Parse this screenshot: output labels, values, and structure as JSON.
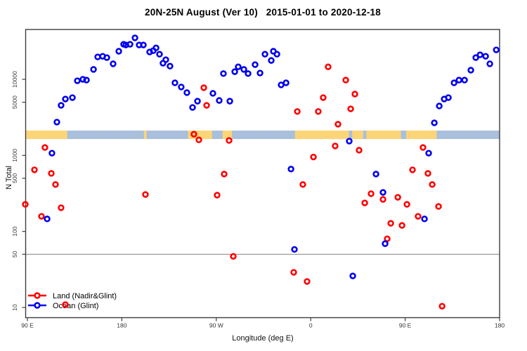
{
  "chart_data": {
    "type": "scatter",
    "title": "20N-25N August (Ver 10)   2015-01-01 to 2020-12-18",
    "xlabel": "Longitude (deg E)",
    "ylabel": "N Total",
    "x_axis": {
      "ticks": [
        90,
        180,
        270,
        360,
        450,
        540
      ],
      "tick_labels": [
        "90 E",
        "180",
        "90 W",
        "0",
        "90 E",
        "180"
      ],
      "note": "longitude wraps: 90E to 180, 90W, 0, 90E, 180"
    },
    "y_axis": {
      "scale": "log",
      "ticks": [
        10,
        50,
        100,
        500,
        1000,
        5000,
        10000
      ],
      "tick_labels": [
        "10",
        "50",
        "100",
        "500",
        "1000",
        "5000",
        "10000"
      ],
      "range": [
        9,
        45000
      ]
    },
    "reference_line_y": 50,
    "map_strip": {
      "n_top": 2120,
      "n_bottom": 1640,
      "ocean_color": "#a9bfdc",
      "land_color": "#fbd578",
      "land_segments_lon": [
        [
          88,
          128
        ],
        [
          201,
          203.5
        ],
        [
          243,
          266
        ],
        [
          276,
          285
        ],
        [
          345,
          480
        ]
      ],
      "ocean_gaps_lon": [
        [
          396.5,
          399.5
        ],
        [
          410,
          413
        ],
        [
          446,
          451
        ]
      ]
    },
    "legend": [
      {
        "label": "Land (Nadir&Glint)",
        "color": "#ff0000"
      },
      {
        "label": "Ocean (Glint)",
        "color": "#0000ee"
      }
    ],
    "series": [
      {
        "name": "Land (Nadir&Glint)",
        "color": "#ff0000",
        "points": [
          [
            258.1,
            7760
          ],
          [
            260.8,
            4550
          ],
          [
            376.6,
            14600
          ],
          [
            393.4,
            9770
          ],
          [
            371.9,
            5750
          ],
          [
            367.2,
            3780
          ],
          [
            347.2,
            3780
          ],
          [
            386.0,
            2570
          ],
          [
            402.1,
            6400
          ],
          [
            398.1,
            4090
          ],
          [
            106.7,
            1270
          ],
          [
            96.7,
            646
          ],
          [
            112.8,
            580
          ],
          [
            116.8,
            414
          ],
          [
            88.0,
            227
          ],
          [
            122.1,
            205
          ],
          [
            103.4,
            158
          ],
          [
            202.5,
            306
          ],
          [
            248.7,
            1900
          ],
          [
            253.4,
            1600
          ],
          [
            282.2,
            1570
          ],
          [
            277.5,
            568
          ],
          [
            270.8,
            300
          ],
          [
            286.2,
            47
          ],
          [
            126.2,
            10.9
          ],
          [
            383.3,
            1330
          ],
          [
            406.1,
            1170
          ],
          [
            362.6,
            952
          ],
          [
            352.5,
            414
          ],
          [
            467.0,
            1270
          ],
          [
            457.0,
            646
          ],
          [
            471.7,
            580
          ],
          [
            475.8,
            414
          ],
          [
            417.5,
            313
          ],
          [
            428.9,
            264
          ],
          [
            443.0,
            281
          ],
          [
            451.7,
            227
          ],
          [
            411.5,
            237
          ],
          [
            481.8,
            213
          ],
          [
            462.3,
            158
          ],
          [
            436.3,
            128
          ],
          [
            447.0,
            120
          ],
          [
            432.9,
            80
          ],
          [
            343.8,
            29
          ],
          [
            356.5,
            22
          ],
          [
            485.2,
            10.4
          ]
        ]
      },
      {
        "name": "Ocean (Glint)",
        "color": "#0000ee",
        "points": [
          [
            118.1,
            2740
          ],
          [
            122.1,
            4550
          ],
          [
            126.2,
            5510
          ],
          [
            132.9,
            5750
          ],
          [
            137.6,
            9580
          ],
          [
            142.9,
            10000
          ],
          [
            146.3,
            9770
          ],
          [
            153.0,
            13500
          ],
          [
            157.0,
            19700
          ],
          [
            161.7,
            20100
          ],
          [
            165.7,
            19300
          ],
          [
            171.7,
            16000
          ],
          [
            177.1,
            23400
          ],
          [
            181.7,
            28900
          ],
          [
            183.8,
            28300
          ],
          [
            187.8,
            28900
          ],
          [
            192.5,
            35100
          ],
          [
            196.5,
            28300
          ],
          [
            200.5,
            28300
          ],
          [
            206.5,
            22900
          ],
          [
            209.9,
            23800
          ],
          [
            212.6,
            25900
          ],
          [
            215.9,
            21400
          ],
          [
            219.2,
            16300
          ],
          [
            221.9,
            18100
          ],
          [
            225.9,
            14900
          ],
          [
            230.6,
            9000
          ],
          [
            236.6,
            7930
          ],
          [
            242.0,
            6680
          ],
          [
            247.4,
            4270
          ],
          [
            252.1,
            5160
          ],
          [
            266.8,
            6540
          ],
          [
            272.8,
            5270
          ],
          [
            282.9,
            5160
          ],
          [
            276.8,
            11900
          ],
          [
            287.6,
            12600
          ],
          [
            290.9,
            14600
          ],
          [
            296.3,
            13500
          ],
          [
            300.3,
            11900
          ],
          [
            307.0,
            15600
          ],
          [
            311.7,
            12100
          ],
          [
            316.4,
            21400
          ],
          [
            322.4,
            17700
          ],
          [
            324.4,
            23400
          ],
          [
            327.8,
            21400
          ],
          [
            331.8,
            8450
          ],
          [
            336.5,
            9000
          ],
          [
            477.8,
            2680
          ],
          [
            482.5,
            4460
          ],
          [
            487.2,
            5510
          ],
          [
            491.2,
            5750
          ],
          [
            496.6,
            9000
          ],
          [
            501.3,
            9770
          ],
          [
            506.6,
            9770
          ],
          [
            512.6,
            13200
          ],
          [
            517.3,
            19300
          ],
          [
            521.4,
            21000
          ],
          [
            526.7,
            20100
          ],
          [
            530.7,
            16000
          ],
          [
            536.8,
            24400
          ],
          [
            113.4,
            1070
          ],
          [
            108.8,
            146
          ],
          [
            341.2,
            661
          ],
          [
            422.2,
            568
          ],
          [
            428.9,
            326
          ],
          [
            468.4,
            146
          ],
          [
            430.9,
            69
          ],
          [
            344.5,
            58
          ],
          [
            400.1,
            26
          ],
          [
            396.7,
            1540
          ],
          [
            472.4,
            1070
          ]
        ]
      }
    ]
  }
}
